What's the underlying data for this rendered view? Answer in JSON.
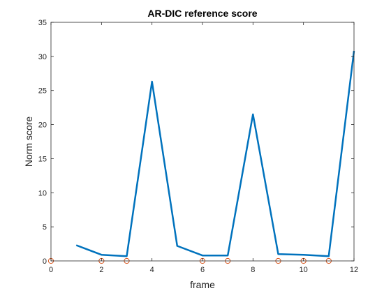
{
  "chart_data": {
    "type": "line",
    "title": "AR-DIC reference score",
    "xlabel": "frame",
    "ylabel": "Norm score",
    "xlim": [
      0,
      12
    ],
    "ylim": [
      0,
      35
    ],
    "xticks": [
      0,
      2,
      4,
      6,
      8,
      10,
      12
    ],
    "yticks": [
      0,
      5,
      10,
      15,
      20,
      25,
      30,
      35
    ],
    "grid": false,
    "series": [
      {
        "kind": "line",
        "color": "#0072BD",
        "x": [
          1,
          2,
          3,
          4,
          5,
          6,
          7,
          8,
          9,
          10,
          11,
          12
        ],
        "y": [
          2.3,
          0.9,
          0.7,
          26.3,
          2.2,
          0.8,
          0.8,
          21.5,
          1.0,
          0.9,
          0.7,
          30.8
        ]
      },
      {
        "kind": "markers",
        "marker": "circle",
        "color": "#D95319",
        "x": [
          0,
          2,
          3,
          6,
          7,
          9,
          10,
          11
        ],
        "y": [
          0,
          0,
          0,
          0,
          0,
          0,
          0,
          0
        ]
      }
    ]
  }
}
